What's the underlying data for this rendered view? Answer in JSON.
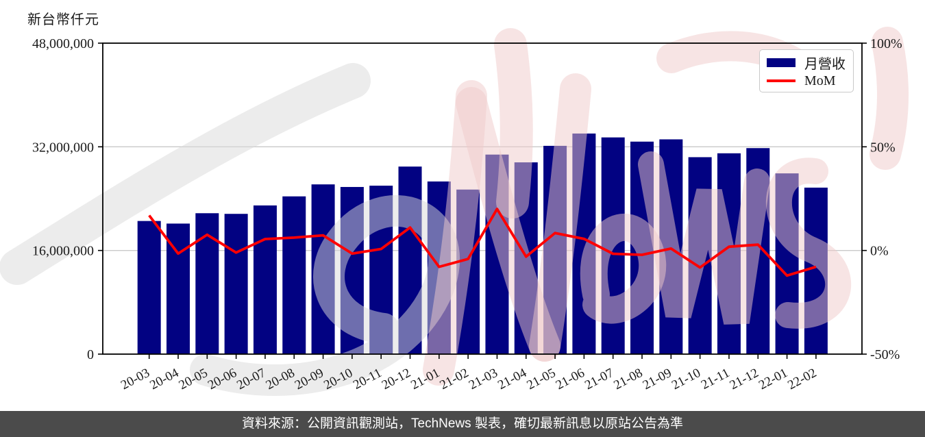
{
  "chart_data": {
    "type": "combo-bar-line",
    "categories": [
      "20-03",
      "20-04",
      "20-05",
      "20-06",
      "20-07",
      "20-08",
      "20-09",
      "20-10",
      "20-11",
      "20-12",
      "21-01",
      "21-02",
      "21-03",
      "21-04",
      "21-05",
      "21-06",
      "21-07",
      "21-08",
      "21-09",
      "21-10",
      "21-11",
      "21-12",
      "22-01",
      "22-02"
    ],
    "series": [
      {
        "name": "月營收",
        "type": "bar",
        "axis": "left",
        "color": "#020282",
        "values": [
          20550000,
          20150000,
          21750000,
          21650000,
          22950000,
          24350000,
          26200000,
          25800000,
          26000000,
          28950000,
          26650000,
          25400000,
          30800000,
          29600000,
          32150000,
          34050000,
          33450000,
          32800000,
          33150000,
          30400000,
          31000000,
          31800000,
          27900000,
          25700000
        ]
      },
      {
        "name": "MoM",
        "type": "line",
        "axis": "right",
        "color": "#ff0000",
        "values": [
          16.9,
          -1.5,
          7.6,
          -1.0,
          5.5,
          6.2,
          7.3,
          -1.5,
          0.7,
          11.1,
          -7.9,
          -4.1,
          20.0,
          -3.0,
          8.4,
          5.6,
          -1.6,
          -2.1,
          0.9,
          -8.2,
          1.8,
          2.8,
          -12.1,
          -7.9
        ]
      }
    ],
    "left_axis": {
      "title": "新台幣仟元",
      "min": 0,
      "max": 48000000,
      "tick_labels": [
        "48,000,000",
        "32,000,000",
        "16,000,000",
        "0"
      ],
      "tick_values": [
        48000000,
        32000000,
        16000000,
        0
      ]
    },
    "right_axis": {
      "min": -50,
      "max": 100,
      "tick_labels": [
        "100%",
        "50%",
        "0%",
        "-50%"
      ],
      "tick_values": [
        100,
        50,
        0,
        -50
      ]
    },
    "grid": {
      "horizontal_values": [
        32000000,
        16000000
      ],
      "color": "#c9c9c9"
    },
    "legend": {
      "position": "top-right",
      "items": [
        {
          "label": "月營收"
        },
        {
          "label": "MoM"
        }
      ]
    },
    "tick_color": "#1a1a1a",
    "spine_color": "#000000"
  },
  "watermark": {
    "label": "TechNews",
    "gray": "#d9d9d9",
    "pink": "#f0caca"
  },
  "footer": {
    "text": "資料來源：公開資訊觀測站，TechNews 製表，確切最新訊息以原站公告為準",
    "bg": "#4b4b4b",
    "color": "#ffffff"
  }
}
